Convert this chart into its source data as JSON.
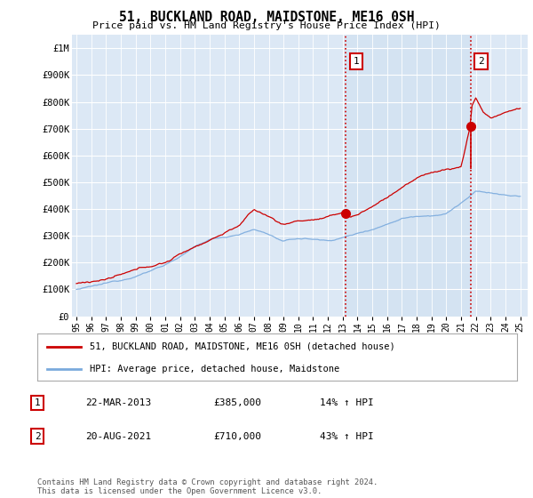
{
  "title": "51, BUCKLAND ROAD, MAIDSTONE, ME16 0SH",
  "subtitle": "Price paid vs. HM Land Registry's House Price Index (HPI)",
  "ylabel_ticks": [
    "£0",
    "£100K",
    "£200K",
    "£300K",
    "£400K",
    "£500K",
    "£600K",
    "£700K",
    "£800K",
    "£900K",
    "£1M"
  ],
  "ytick_values": [
    0,
    100000,
    200000,
    300000,
    400000,
    500000,
    600000,
    700000,
    800000,
    900000,
    1000000
  ],
  "ylim": [
    0,
    1050000
  ],
  "xlim_start": 1994.7,
  "xlim_end": 2025.5,
  "xticks": [
    1995,
    1996,
    1997,
    1998,
    1999,
    2000,
    2001,
    2002,
    2003,
    2004,
    2005,
    2006,
    2007,
    2008,
    2009,
    2010,
    2011,
    2012,
    2013,
    2014,
    2015,
    2016,
    2017,
    2018,
    2019,
    2020,
    2021,
    2022,
    2023,
    2024,
    2025
  ],
  "sale1_x": 2013.22,
  "sale1_y": 385000,
  "sale1_label": "1",
  "sale1_date": "22-MAR-2013",
  "sale1_price": "£385,000",
  "sale1_hpi": "14% ↑ HPI",
  "sale2_x": 2021.63,
  "sale2_y": 710000,
  "sale2_label": "2",
  "sale2_date": "20-AUG-2021",
  "sale2_price": "£710,000",
  "sale2_hpi": "43% ↑ HPI",
  "line1_color": "#cc0000",
  "line2_color": "#7aaadd",
  "vline_color": "#cc0000",
  "legend1_label": "51, BUCKLAND ROAD, MAIDSTONE, ME16 0SH (detached house)",
  "legend2_label": "HPI: Average price, detached house, Maidstone",
  "footer": "Contains HM Land Registry data © Crown copyright and database right 2024.\nThis data is licensed under the Open Government Licence v3.0.",
  "background_color": "#ffffff",
  "plot_bg_color": "#dce8f5",
  "plot_bg_right_color": "#e8f0f8"
}
